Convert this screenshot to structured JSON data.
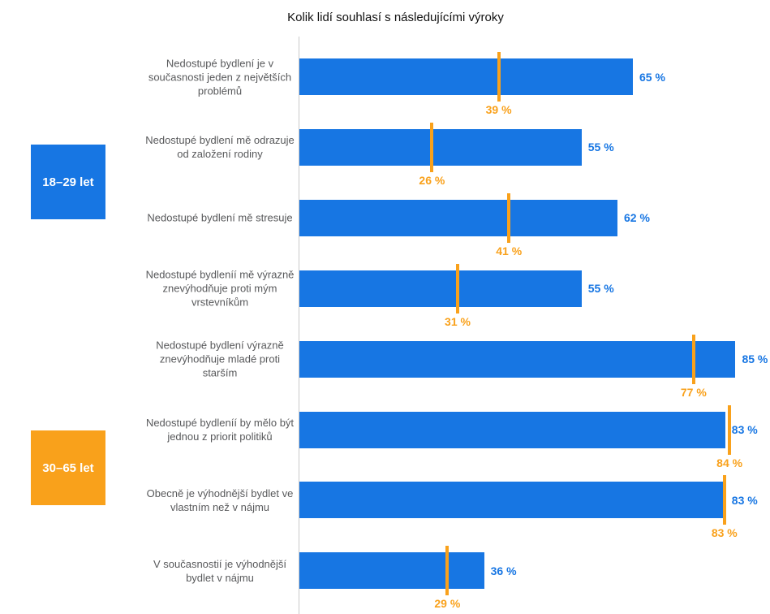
{
  "chart_data": {
    "type": "bar",
    "orientation": "horizontal",
    "title": "Kolik lidí souhlasí s následujícími výroky",
    "xlabel": "",
    "ylabel": "",
    "xlim": [
      0,
      100
    ],
    "value_suffix": " %",
    "grid": false,
    "legend_position": "left, stacked color blocks",
    "categories": [
      "Nedostupé bydlení je v současnosti jeden z největších problémů",
      "Nedostupé bydlení mě odrazuje od založení rodiny",
      "Nedostupé bydlení mě stresuje",
      "Nedostupé bydleníí mě výrazně znevýhodňuje proti mým vrstevníkům",
      "Nedostupé bydlení výrazně znevýhodňuje mladé proti starším",
      "Nedostupé bydleníí by mělo být jednou z priorit politiků",
      "Obecně je výhodnější bydlet ve vlastním než v nájmu",
      "V současnostií je výhodnější bydlet v nájmu"
    ],
    "series": [
      {
        "name": "18–29 let",
        "style": "bar",
        "color": "#1776e3",
        "values": [
          65,
          55,
          62,
          55,
          85,
          83,
          83,
          36
        ]
      },
      {
        "name": "30–65 let",
        "style": "tick-marker",
        "color": "#f9a11b",
        "values": [
          39,
          26,
          41,
          31,
          77,
          84,
          83,
          29
        ]
      }
    ]
  },
  "legend": [
    {
      "label": "18–29 let",
      "color": "#1776e3"
    },
    {
      "label": "30–65 let",
      "color": "#f9a11b"
    }
  ],
  "colors": {
    "bar_blue": "#1776e3",
    "marker_orange": "#f9a11b",
    "label_gray": "#58595b",
    "axis_gray": "#c9c9c9"
  }
}
